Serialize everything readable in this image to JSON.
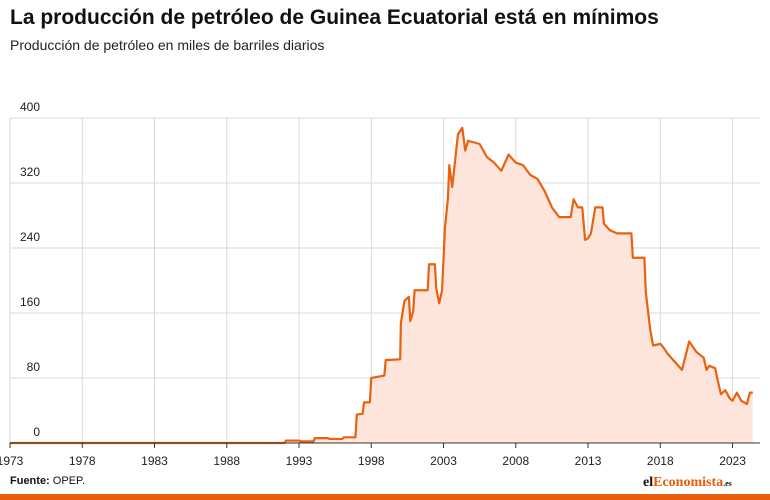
{
  "header": {
    "title": "La producción de petróleo de Guinea Ecuatorial está en mínimos",
    "subtitle": "Producción de petróleo en miles de barriles diarios"
  },
  "footer": {
    "source_label": "Fuente:",
    "source_value": "OPEP.",
    "logo_part1": "el",
    "logo_part2": "Economista",
    "logo_part3": ".es"
  },
  "colors": {
    "line": "#e8620f",
    "area": "#fde5db",
    "grid": "#d9d9d9",
    "axis": "#333333",
    "brand": "#e85d0c"
  },
  "chart_data": {
    "type": "area",
    "title": "La producción de petróleo de Guinea Ecuatorial está en mínimos",
    "subtitle": "Producción de petróleo en miles de barriles diarios",
    "xlabel": "",
    "ylabel": "",
    "xlim": [
      1973,
      2024.9
    ],
    "ylim": [
      0,
      400
    ],
    "yticks": [
      0,
      80,
      160,
      240,
      320,
      400
    ],
    "ytick_labels": [
      "0",
      "80",
      "160",
      "240",
      "320",
      "400"
    ],
    "xticks": [
      1973,
      1978,
      1983,
      1988,
      1993,
      1998,
      2003,
      2008,
      2013,
      2018,
      2023
    ],
    "xtick_labels": [
      "1973",
      "1978",
      "1983",
      "1988",
      "1993",
      "1998",
      "2003",
      "2008",
      "2013",
      "2018",
      "2023"
    ],
    "grid": "vertical-and-horizontal",
    "legend": "none",
    "series": [
      {
        "values": [
          [
            1973,
            0
          ],
          [
            1992,
            0
          ],
          [
            1992.1,
            3
          ],
          [
            1993,
            3
          ],
          [
            1993.1,
            2
          ],
          [
            1994,
            2
          ],
          [
            1994.1,
            6
          ],
          [
            1995,
            6
          ],
          [
            1995.1,
            5
          ],
          [
            1996,
            5
          ],
          [
            1996.1,
            7
          ],
          [
            1996.9,
            7
          ],
          [
            1997.0,
            35
          ],
          [
            1997.4,
            36
          ],
          [
            1997.5,
            50
          ],
          [
            1997.9,
            50
          ],
          [
            1998.0,
            80
          ],
          [
            1998.9,
            83
          ],
          [
            1999.0,
            102
          ],
          [
            2000.0,
            103
          ],
          [
            2000.05,
            148
          ],
          [
            2000.3,
            175
          ],
          [
            2000.6,
            180
          ],
          [
            2000.7,
            150
          ],
          [
            2000.9,
            162
          ],
          [
            2001.0,
            188
          ],
          [
            2001.9,
            188
          ],
          [
            2002.0,
            220
          ],
          [
            2002.4,
            220
          ],
          [
            2002.5,
            190
          ],
          [
            2002.7,
            172
          ],
          [
            2002.9,
            188
          ],
          [
            2003.1,
            265
          ],
          [
            2003.3,
            300
          ],
          [
            2003.4,
            342
          ],
          [
            2003.6,
            315
          ],
          [
            2004.0,
            380
          ],
          [
            2004.3,
            388
          ],
          [
            2004.5,
            360
          ],
          [
            2004.7,
            372
          ],
          [
            2005.5,
            368
          ],
          [
            2006.0,
            352
          ],
          [
            2006.5,
            345
          ],
          [
            2007.0,
            335
          ],
          [
            2007.5,
            355
          ],
          [
            2008.0,
            345
          ],
          [
            2008.5,
            342
          ],
          [
            2009.0,
            330
          ],
          [
            2009.5,
            325
          ],
          [
            2010.0,
            310
          ],
          [
            2010.5,
            290
          ],
          [
            2011.0,
            278
          ],
          [
            2011.5,
            278
          ],
          [
            2011.8,
            278
          ],
          [
            2012.0,
            300
          ],
          [
            2012.3,
            290
          ],
          [
            2012.6,
            290
          ],
          [
            2012.8,
            250
          ],
          [
            2013.0,
            252
          ],
          [
            2013.2,
            258
          ],
          [
            2013.5,
            290
          ],
          [
            2014.0,
            290
          ],
          [
            2014.1,
            270
          ],
          [
            2014.5,
            262
          ],
          [
            2015.0,
            258
          ],
          [
            2016.0,
            258
          ],
          [
            2016.1,
            228
          ],
          [
            2016.9,
            228
          ],
          [
            2017.0,
            185
          ],
          [
            2017.3,
            140
          ],
          [
            2017.5,
            120
          ],
          [
            2018.0,
            122
          ],
          [
            2018.2,
            118
          ],
          [
            2018.5,
            110
          ],
          [
            2019.0,
            100
          ],
          [
            2019.5,
            90
          ],
          [
            2020.0,
            125
          ],
          [
            2020.5,
            112
          ],
          [
            2021.0,
            105
          ],
          [
            2021.2,
            90
          ],
          [
            2021.4,
            95
          ],
          [
            2021.8,
            92
          ],
          [
            2022.0,
            75
          ],
          [
            2022.2,
            60
          ],
          [
            2022.5,
            65
          ],
          [
            2022.8,
            55
          ],
          [
            2023.0,
            52
          ],
          [
            2023.3,
            62
          ],
          [
            2023.6,
            52
          ],
          [
            2024.0,
            48
          ],
          [
            2024.2,
            62
          ],
          [
            2024.4,
            62
          ]
        ]
      }
    ]
  }
}
